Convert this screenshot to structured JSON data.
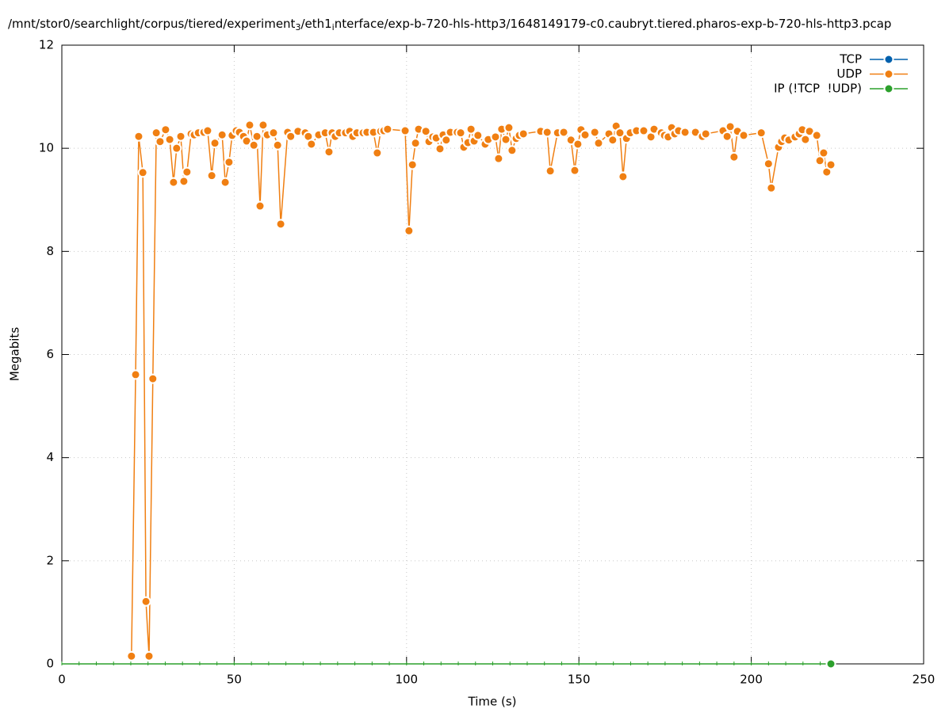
{
  "chart_data": {
    "type": "line",
    "title": [
      "/mnt/stor0/searchlight/corpus/tiered/experiment",
      "3",
      "/eth1",
      "i",
      "nterface/exp-b-720-hls-http3/1648149179-c0.caubryt.tiered.pharos-exp-b-720-hls-http3.pcap"
    ],
    "x_label": "Time (s)",
    "y_label": "Megabits",
    "xlim": [
      0,
      250
    ],
    "xticks": [
      0,
      50,
      100,
      150,
      200,
      250
    ],
    "ylim": [
      0,
      12
    ],
    "yticks": [
      0,
      2,
      4,
      6,
      8,
      10,
      12
    ],
    "grid": true,
    "legend": "top-right",
    "series": [
      {
        "name": "TCP",
        "color": "#0060ad",
        "x": [],
        "values": []
      },
      {
        "name": "UDP",
        "color": "#f07f12",
        "x": [
          20.2,
          21.4,
          22.3,
          23.5,
          24.4,
          25.3,
          26.4,
          27.4,
          28.5,
          30.1,
          31.3,
          32.4,
          33.3,
          34.5,
          35.4,
          36.3,
          37.5,
          38.4,
          39.6,
          41.2,
          42.3,
          43.5,
          44.4,
          46.5,
          47.4,
          48.5,
          49.4,
          50.6,
          51.5,
          52.7,
          53.6,
          54.5,
          55.7,
          56.6,
          57.5,
          58.4,
          59.6,
          61.4,
          62.6,
          63.5,
          65.5,
          66.4,
          68.5,
          70.6,
          71.5,
          72.4,
          74.5,
          76.4,
          77.5,
          78.4,
          79.3,
          80.5,
          82.3,
          83.5,
          84.4,
          85.6,
          87.4,
          88.5,
          90.4,
          91.5,
          92.5,
          93.4,
          94.5,
          99.6,
          100.7,
          101.7,
          102.6,
          103.5,
          105.6,
          106.5,
          107.6,
          108.6,
          109.7,
          110.6,
          111.5,
          112.7,
          114.7,
          115.7,
          116.6,
          117.8,
          118.7,
          119.6,
          120.7,
          122.8,
          123.7,
          125.8,
          126.7,
          127.6,
          128.8,
          129.7,
          130.6,
          131.8,
          132.7,
          133.9,
          138.9,
          140.8,
          141.7,
          143.8,
          145.6,
          147.7,
          148.8,
          149.7,
          150.6,
          151.8,
          154.6,
          155.7,
          158.7,
          159.8,
          160.8,
          161.9,
          162.8,
          163.8,
          164.9,
          166.7,
          168.8,
          170.9,
          171.8,
          173.9,
          174.8,
          175.9,
          176.9,
          177.8,
          178.9,
          180.8,
          183.8,
          185.8,
          186.8,
          191.8,
          193.0,
          193.9,
          195.0,
          196.0,
          197.8,
          202.9,
          205.0,
          205.8,
          207.9,
          208.8,
          209.7,
          210.9,
          212.7,
          213.9,
          214.8,
          215.7,
          216.9,
          219.0,
          219.9,
          221.0,
          221.9,
          223.1
        ],
        "values": [
          0.15,
          5.61,
          10.23,
          9.53,
          1.21,
          0.15,
          5.53,
          10.3,
          10.13,
          10.36,
          10.17,
          9.34,
          10.0,
          10.23,
          9.36,
          9.54,
          10.28,
          10.26,
          10.3,
          10.31,
          10.34,
          9.47,
          10.1,
          10.26,
          9.34,
          9.73,
          10.25,
          10.34,
          10.31,
          10.23,
          10.14,
          10.45,
          10.06,
          10.23,
          8.88,
          10.45,
          10.26,
          10.3,
          10.06,
          8.53,
          10.31,
          10.23,
          10.33,
          10.3,
          10.23,
          10.08,
          10.26,
          10.3,
          9.93,
          10.3,
          10.23,
          10.3,
          10.3,
          10.33,
          10.23,
          10.3,
          10.3,
          10.31,
          10.31,
          9.91,
          10.33,
          10.34,
          10.37,
          10.34,
          8.4,
          9.68,
          10.1,
          10.37,
          10.33,
          10.13,
          10.22,
          10.2,
          9.99,
          10.26,
          10.16,
          10.31,
          10.31,
          10.3,
          10.02,
          10.11,
          10.37,
          10.14,
          10.25,
          10.08,
          10.17,
          10.22,
          9.8,
          10.37,
          10.17,
          10.4,
          9.96,
          10.19,
          10.25,
          10.28,
          10.33,
          10.31,
          9.56,
          10.3,
          10.31,
          10.16,
          9.57,
          10.08,
          10.36,
          10.26,
          10.31,
          10.1,
          10.28,
          10.16,
          10.43,
          10.3,
          9.45,
          10.19,
          10.3,
          10.34,
          10.34,
          10.22,
          10.37,
          10.3,
          10.25,
          10.22,
          10.4,
          10.28,
          10.34,
          10.31,
          10.31,
          10.23,
          10.28,
          10.34,
          10.23,
          10.42,
          9.83,
          10.33,
          10.25,
          10.3,
          9.7,
          9.23,
          10.02,
          10.13,
          10.2,
          10.16,
          10.22,
          10.28,
          10.36,
          10.17,
          10.33,
          10.25,
          9.76,
          9.91,
          9.54,
          9.68
        ]
      },
      {
        "name": "IP (!TCP  !UDP)",
        "color": "#2ca02c",
        "x": [
          0,
          5,
          10,
          15,
          20,
          25,
          30,
          35,
          40,
          45,
          50,
          55,
          60,
          65,
          70,
          75,
          80,
          85,
          90,
          95,
          100,
          105,
          110,
          115,
          120,
          125,
          130,
          135,
          140,
          145,
          150,
          155,
          160,
          165,
          170,
          175,
          180,
          185,
          190,
          195,
          200,
          205,
          210,
          215,
          220,
          223.1
        ],
        "values": [
          0,
          0,
          0,
          0,
          0,
          0,
          0,
          0,
          0,
          0,
          0,
          0,
          0,
          0,
          0,
          0,
          0,
          0,
          0,
          0,
          0,
          0,
          0,
          0,
          0,
          0,
          0,
          0,
          0,
          0,
          0,
          0,
          0,
          0,
          0,
          0,
          0,
          0,
          0,
          0,
          0,
          0,
          0,
          0,
          0,
          0
        ]
      }
    ]
  }
}
